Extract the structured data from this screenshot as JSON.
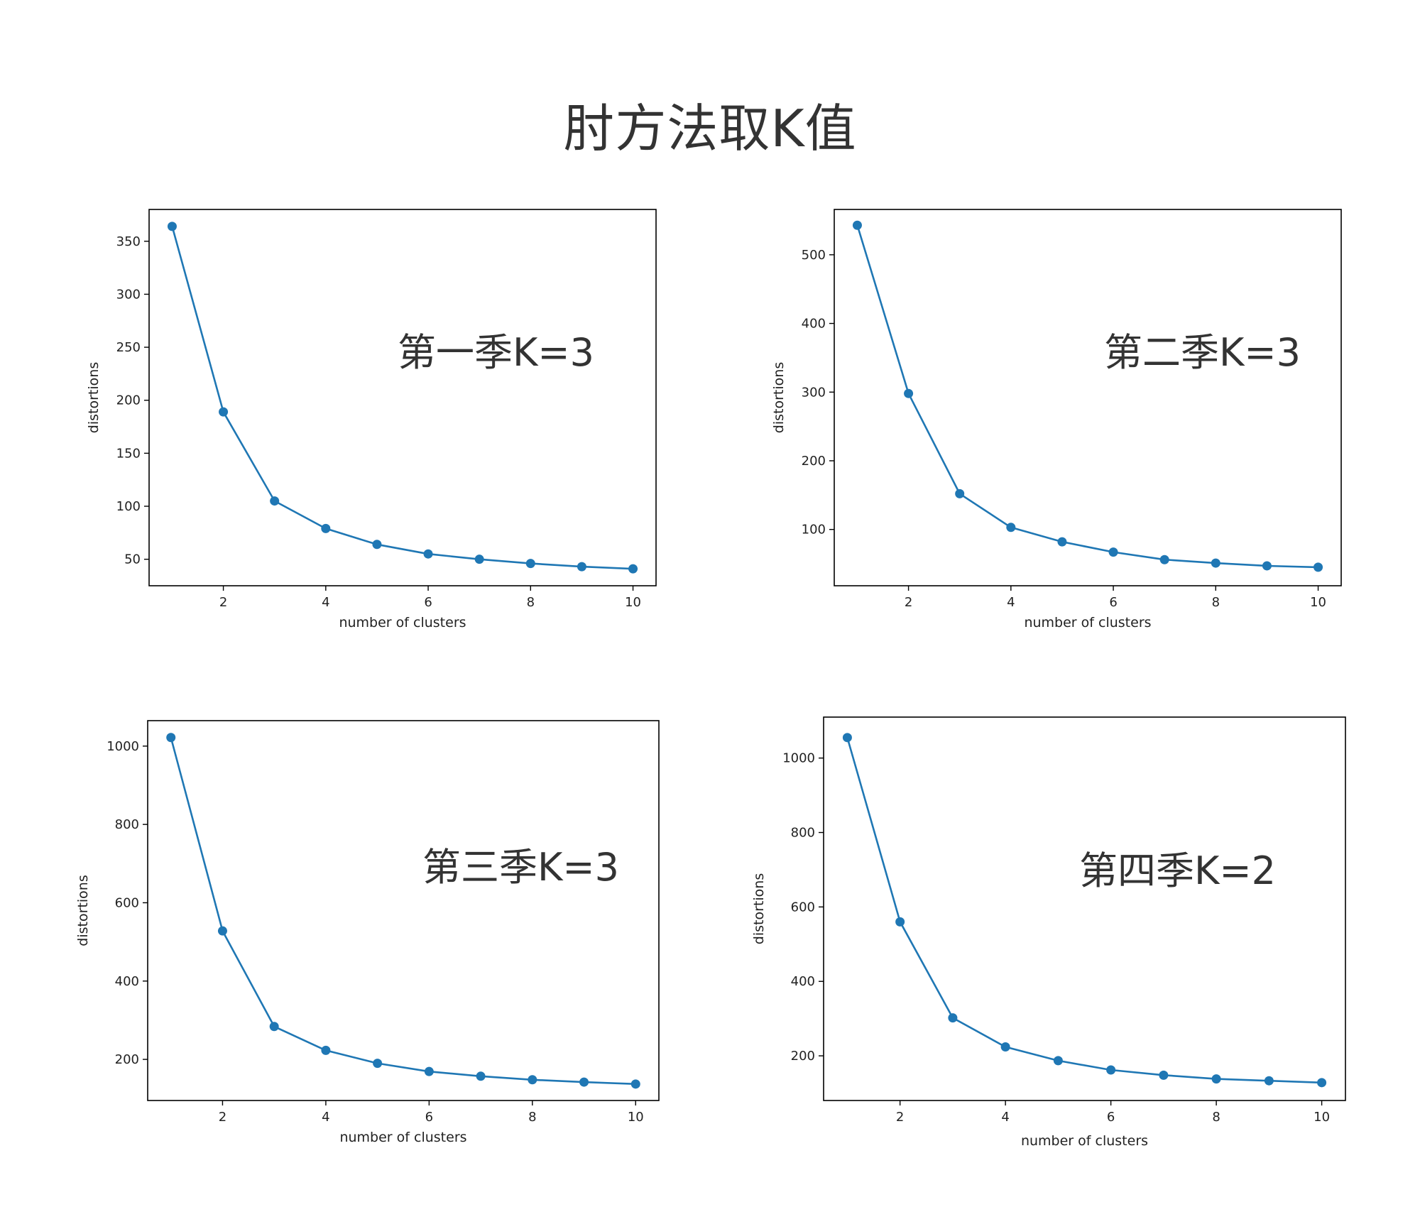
{
  "page": {
    "title": "肘方法取K值"
  },
  "chart_data": [
    {
      "type": "line",
      "xlabel": "number of clusters",
      "ylabel": "distortions",
      "annotation": "第一季K=3",
      "x": [
        1,
        2,
        3,
        4,
        5,
        6,
        7,
        8,
        9,
        10
      ],
      "series": [
        {
          "values": [
            364,
            189,
            105,
            79,
            64,
            55,
            50,
            46,
            43,
            41
          ]
        }
      ],
      "xlim": [
        0.55,
        10.45
      ],
      "ylim": [
        25,
        380
      ],
      "xticks": [
        2,
        4,
        6,
        8,
        10
      ],
      "yticks": [
        50,
        100,
        150,
        200,
        250,
        300,
        350
      ],
      "color": "#1f77b4",
      "grid": false,
      "legend": "none"
    },
    {
      "type": "line",
      "xlabel": "number of clusters",
      "ylabel": "distortions",
      "annotation": "第二季K=3",
      "x": [
        1,
        2,
        3,
        4,
        5,
        6,
        7,
        8,
        9,
        10
      ],
      "series": [
        {
          "values": [
            543,
            298,
            152,
            103,
            82,
            67,
            56,
            51,
            47,
            45
          ]
        }
      ],
      "xlim": [
        0.55,
        10.45
      ],
      "ylim": [
        18,
        566
      ],
      "xticks": [
        2,
        4,
        6,
        8,
        10
      ],
      "yticks": [
        100,
        200,
        300,
        400,
        500
      ],
      "color": "#1f77b4",
      "grid": false,
      "legend": "none"
    },
    {
      "type": "line",
      "xlabel": "number of clusters",
      "ylabel": "distortions",
      "annotation": "第三季K=3",
      "x": [
        1,
        2,
        3,
        4,
        5,
        6,
        7,
        8,
        9,
        10
      ],
      "series": [
        {
          "values": [
            1022,
            528,
            284,
            223,
            190,
            169,
            157,
            148,
            142,
            137
          ]
        }
      ],
      "xlim": [
        0.55,
        10.45
      ],
      "ylim": [
        95,
        1065
      ],
      "xticks": [
        2,
        4,
        6,
        8,
        10
      ],
      "yticks": [
        200,
        400,
        600,
        800,
        1000
      ],
      "color": "#1f77b4",
      "grid": false,
      "legend": "none"
    },
    {
      "type": "line",
      "xlabel": "number of clusters",
      "ylabel": "distortions",
      "annotation": "第四季K=2",
      "x": [
        1,
        2,
        3,
        4,
        5,
        6,
        7,
        8,
        9,
        10
      ],
      "series": [
        {
          "values": [
            1055,
            560,
            302,
            224,
            187,
            162,
            148,
            138,
            133,
            128
          ]
        }
      ],
      "xlim": [
        0.55,
        10.45
      ],
      "ylim": [
        80,
        1110
      ],
      "xticks": [
        2,
        4,
        6,
        8,
        10
      ],
      "yticks": [
        200,
        400,
        600,
        800,
        1000
      ],
      "color": "#1f77b4",
      "grid": false,
      "legend": "none"
    }
  ]
}
